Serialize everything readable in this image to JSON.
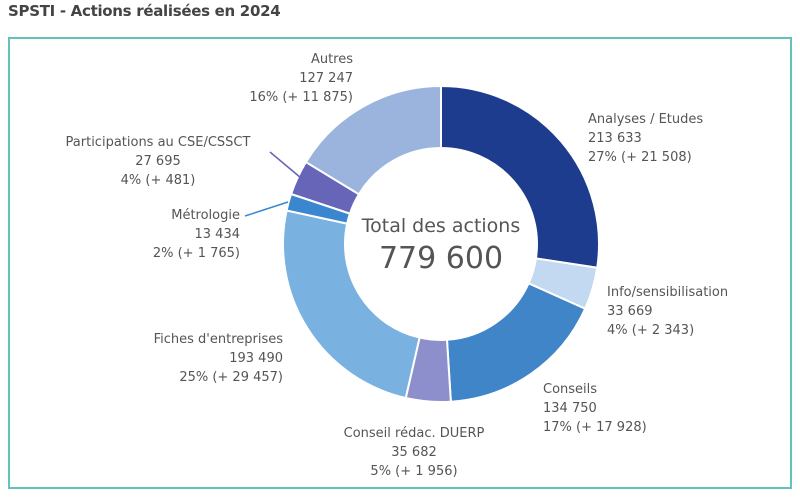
{
  "title": "SPSTI - Actions réalisées en 2024",
  "chart_data": {
    "type": "pie",
    "donut": true,
    "title": "SPSTI - Actions réalisées en 2024",
    "center_label": "Total des actions",
    "center_value": "779 600",
    "total": 779600,
    "slices": [
      {
        "name": "Analyses / Etudes",
        "value": 213633,
        "value_label": "213 633",
        "percent_label": "27% (+ 21 508)",
        "percent": 27,
        "change": 21508,
        "color": "#1e3c8e"
      },
      {
        "name": "Info/sensibilisation",
        "value": 33669,
        "value_label": "33 669",
        "percent_label": "4% (+ 2 343)",
        "percent": 4,
        "change": 2343,
        "color": "#c3d8f1"
      },
      {
        "name": "Conseils",
        "value": 134750,
        "value_label": "134 750",
        "percent_label": "17% (+ 17 928)",
        "percent": 17,
        "change": 17928,
        "color": "#3f85c8"
      },
      {
        "name": "Conseil rédac. DUERP",
        "value": 35682,
        "value_label": "35 682",
        "percent_label": "5% (+ 1 956)",
        "percent": 5,
        "change": 1956,
        "color": "#8d8fcc"
      },
      {
        "name": "Fiches d'entreprises",
        "value": 193490,
        "value_label": "193 490",
        "percent_label": "25% (+ 29 457)",
        "percent": 25,
        "change": 29457,
        "color": "#79b1e1"
      },
      {
        "name": "Métrologie",
        "value": 13434,
        "value_label": "13 434",
        "percent_label": "2% (+ 1 765)",
        "percent": 2,
        "change": 1765,
        "color": "#3a86cf"
      },
      {
        "name": "Participations au CSE/CSSCT",
        "value": 27695,
        "value_label": "27 695",
        "percent_label": "4% (+ 481)",
        "percent": 4,
        "change": 481,
        "color": "#6665b7"
      },
      {
        "name": "Autres",
        "value": 127247,
        "value_label": "127 247",
        "percent_label": "16% (+ 11 875)",
        "percent": 16,
        "change": 11875,
        "color": "#9ab4de"
      }
    ],
    "legend": "none",
    "start": "top",
    "direction": "clockwise"
  }
}
